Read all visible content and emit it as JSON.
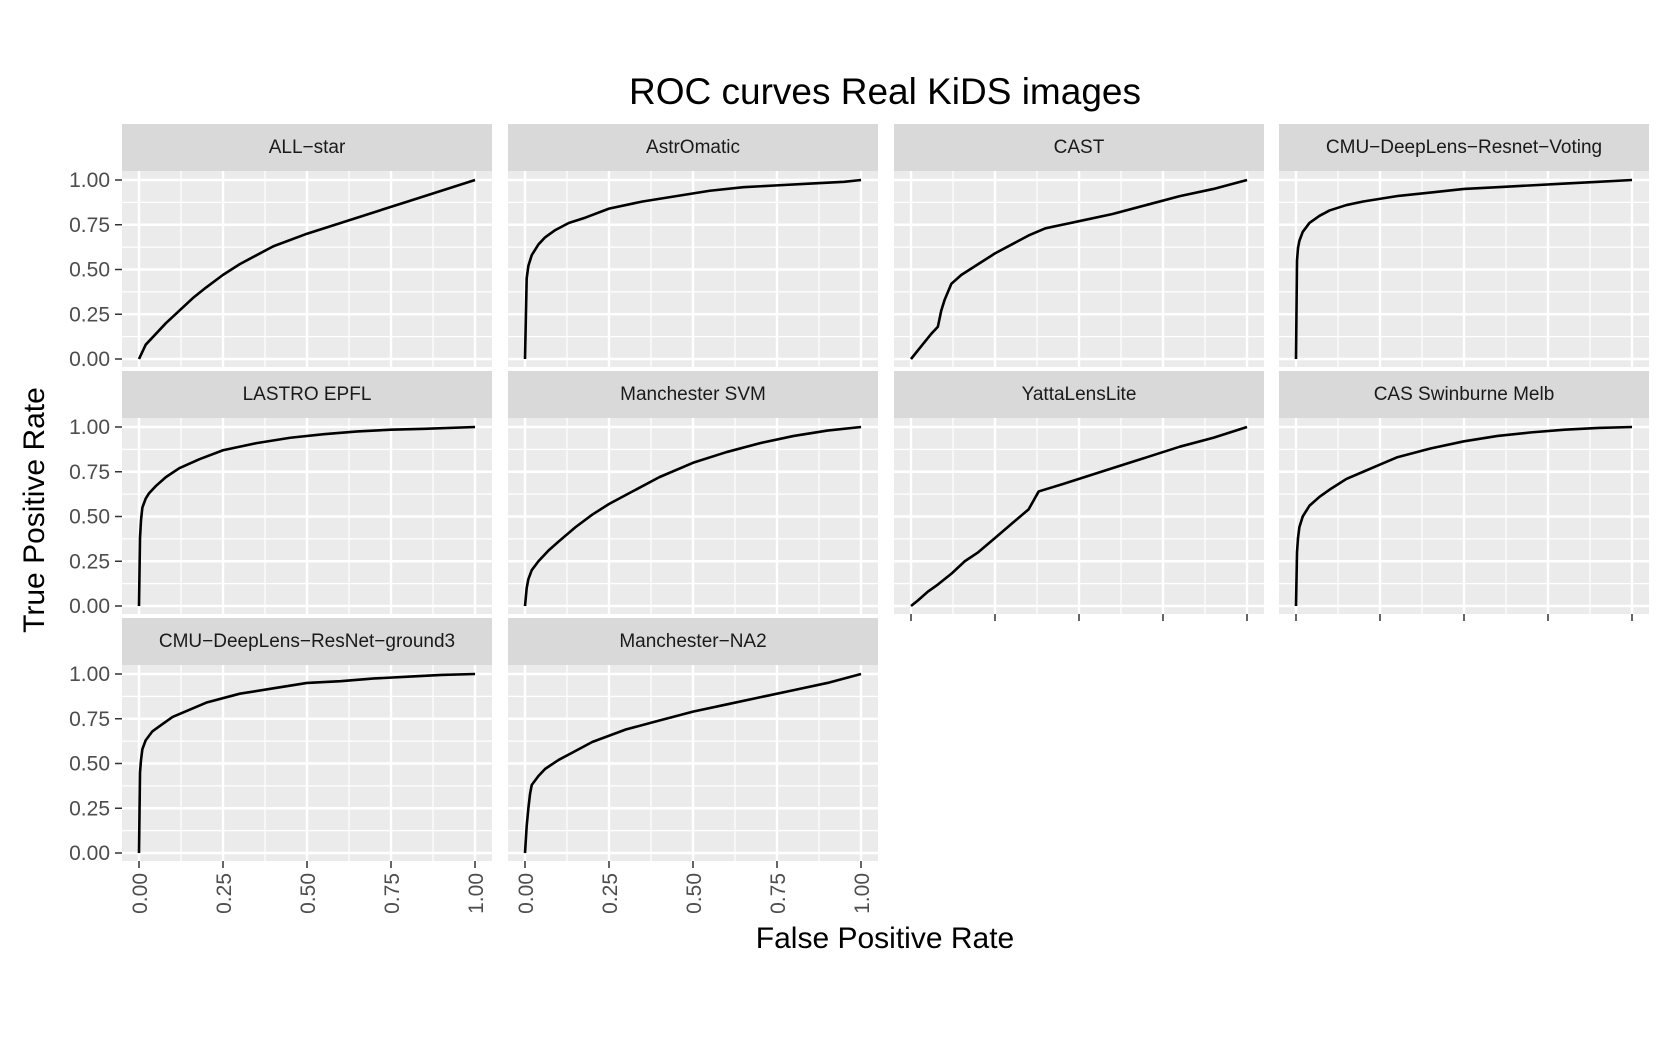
{
  "chart_data": {
    "type": "line",
    "title": "ROC curves Real KiDS images",
    "xlabel": "False Positive Rate",
    "ylabel": "True Positive Rate",
    "xlim": [
      0,
      1
    ],
    "ylim": [
      0,
      1
    ],
    "x_ticks": [
      "0.00",
      "0.25",
      "0.50",
      "0.75",
      "1.00"
    ],
    "y_ticks": [
      "0.00",
      "0.25",
      "0.50",
      "0.75",
      "1.00"
    ],
    "grid": true,
    "legend": "none",
    "layout": "facet_wrap, 4 columns",
    "colors": {
      "panel_bg": "#ebebeb",
      "strip_bg": "#d9d9d9",
      "grid": "#ffffff",
      "line": "#000000"
    },
    "panels": [
      {
        "name": "ALL−star",
        "x": [
          0,
          0.02,
          0.05,
          0.08,
          0.12,
          0.16,
          0.2,
          0.25,
          0.3,
          0.35,
          0.4,
          0.5,
          0.6,
          0.7,
          0.8,
          0.9,
          1.0
        ],
        "y": [
          0,
          0.08,
          0.14,
          0.2,
          0.27,
          0.34,
          0.4,
          0.47,
          0.53,
          0.58,
          0.63,
          0.7,
          0.76,
          0.82,
          0.88,
          0.94,
          1.0
        ]
      },
      {
        "name": "AstrOmatic",
        "x": [
          0,
          0.005,
          0.01,
          0.02,
          0.04,
          0.06,
          0.09,
          0.13,
          0.18,
          0.25,
          0.35,
          0.45,
          0.55,
          0.65,
          0.75,
          0.85,
          0.95,
          1.0
        ],
        "y": [
          0,
          0.45,
          0.52,
          0.58,
          0.64,
          0.68,
          0.72,
          0.76,
          0.79,
          0.84,
          0.88,
          0.91,
          0.94,
          0.96,
          0.97,
          0.98,
          0.99,
          1.0
        ]
      },
      {
        "name": "CAST",
        "x": [
          0,
          0.03,
          0.06,
          0.08,
          0.09,
          0.1,
          0.12,
          0.15,
          0.2,
          0.25,
          0.3,
          0.35,
          0.4,
          0.45,
          0.5,
          0.6,
          0.7,
          0.8,
          0.9,
          1.0
        ],
        "y": [
          0,
          0.07,
          0.14,
          0.18,
          0.27,
          0.33,
          0.42,
          0.47,
          0.53,
          0.59,
          0.64,
          0.69,
          0.73,
          0.75,
          0.77,
          0.81,
          0.86,
          0.91,
          0.95,
          1.0
        ]
      },
      {
        "name": "CMU−DeepLens−Resnet−Voting",
        "x": [
          0,
          0.003,
          0.006,
          0.01,
          0.02,
          0.04,
          0.07,
          0.1,
          0.15,
          0.2,
          0.3,
          0.4,
          0.5,
          0.6,
          0.7,
          0.8,
          0.9,
          1.0
        ],
        "y": [
          0,
          0.55,
          0.62,
          0.66,
          0.71,
          0.76,
          0.8,
          0.83,
          0.86,
          0.88,
          0.91,
          0.93,
          0.95,
          0.96,
          0.97,
          0.98,
          0.99,
          1.0
        ]
      },
      {
        "name": "LASTRO EPFL",
        "x": [
          0,
          0.003,
          0.006,
          0.01,
          0.02,
          0.03,
          0.05,
          0.08,
          0.12,
          0.18,
          0.25,
          0.35,
          0.45,
          0.55,
          0.65,
          0.75,
          0.85,
          1.0
        ],
        "y": [
          0,
          0.38,
          0.48,
          0.55,
          0.6,
          0.63,
          0.67,
          0.72,
          0.77,
          0.82,
          0.87,
          0.91,
          0.94,
          0.96,
          0.975,
          0.985,
          0.99,
          1.0
        ]
      },
      {
        "name": "Manchester SVM",
        "x": [
          0,
          0.005,
          0.01,
          0.02,
          0.04,
          0.07,
          0.1,
          0.15,
          0.2,
          0.25,
          0.3,
          0.4,
          0.5,
          0.6,
          0.7,
          0.8,
          0.9,
          1.0
        ],
        "y": [
          0,
          0.1,
          0.15,
          0.2,
          0.25,
          0.31,
          0.36,
          0.44,
          0.51,
          0.57,
          0.62,
          0.72,
          0.8,
          0.86,
          0.91,
          0.95,
          0.98,
          1.0
        ]
      },
      {
        "name": "YattaLensLite",
        "x": [
          0,
          0.02,
          0.05,
          0.08,
          0.12,
          0.16,
          0.2,
          0.25,
          0.3,
          0.35,
          0.38,
          0.45,
          0.5,
          0.6,
          0.7,
          0.8,
          0.9,
          1.0
        ],
        "y": [
          0,
          0.03,
          0.08,
          0.12,
          0.18,
          0.25,
          0.3,
          0.38,
          0.46,
          0.54,
          0.64,
          0.68,
          0.71,
          0.77,
          0.83,
          0.89,
          0.94,
          1.0
        ]
      },
      {
        "name": "CAS Swinburne Melb",
        "x": [
          0,
          0.003,
          0.006,
          0.01,
          0.02,
          0.04,
          0.07,
          0.1,
          0.15,
          0.2,
          0.25,
          0.3,
          0.4,
          0.5,
          0.6,
          0.7,
          0.8,
          0.9,
          1.0
        ],
        "y": [
          0,
          0.3,
          0.38,
          0.44,
          0.5,
          0.56,
          0.61,
          0.65,
          0.71,
          0.75,
          0.79,
          0.83,
          0.88,
          0.92,
          0.95,
          0.97,
          0.985,
          0.995,
          1.0
        ]
      },
      {
        "name": "CMU−DeepLens−ResNet−ground3",
        "x": [
          0,
          0.003,
          0.006,
          0.01,
          0.02,
          0.04,
          0.07,
          0.1,
          0.15,
          0.2,
          0.3,
          0.4,
          0.5,
          0.6,
          0.7,
          0.8,
          0.9,
          1.0
        ],
        "y": [
          0,
          0.45,
          0.52,
          0.58,
          0.63,
          0.68,
          0.72,
          0.76,
          0.8,
          0.84,
          0.89,
          0.92,
          0.95,
          0.96,
          0.975,
          0.985,
          0.995,
          1.0
        ]
      },
      {
        "name": "Manchester−NA2",
        "x": [
          0,
          0.005,
          0.01,
          0.015,
          0.02,
          0.04,
          0.06,
          0.1,
          0.15,
          0.2,
          0.3,
          0.4,
          0.5,
          0.6,
          0.7,
          0.8,
          0.9,
          1.0
        ],
        "y": [
          0,
          0.15,
          0.25,
          0.33,
          0.38,
          0.43,
          0.47,
          0.52,
          0.57,
          0.62,
          0.69,
          0.74,
          0.79,
          0.83,
          0.87,
          0.91,
          0.95,
          1.0
        ]
      }
    ]
  }
}
